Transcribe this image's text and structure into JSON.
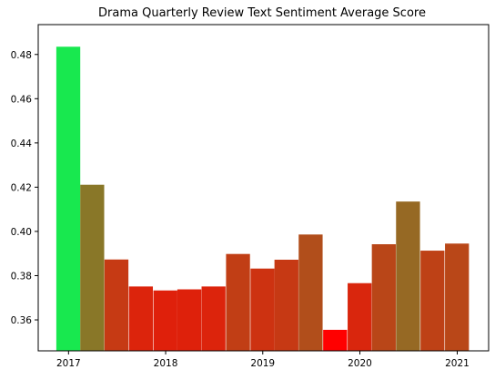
{
  "chart_data": {
    "type": "bar",
    "title": "Drama Quarterly Review Text Sentiment Average Score",
    "xlabel": "",
    "ylabel": "",
    "ylim": [
      0.346,
      0.4935
    ],
    "xlim": [
      "2016-09-09",
      "2021-04-29"
    ],
    "x_ticks": [
      "2017",
      "2018",
      "2019",
      "2020",
      "2021"
    ],
    "y_ticks": [
      "0.36",
      "0.38",
      "0.40",
      "0.42",
      "0.44",
      "0.46",
      "0.48"
    ],
    "grid": false,
    "color_scale": {
      "low": "#ff0000",
      "high": "#18e84f"
    },
    "series": [
      {
        "x": [
          "2016-12-31",
          "2017-03-31",
          "2017-06-30",
          "2017-09-30",
          "2017-12-31",
          "2018-03-31",
          "2018-06-30",
          "2018-09-30",
          "2018-12-31",
          "2019-03-31",
          "2019-06-30",
          "2019-09-30",
          "2019-12-31",
          "2020-03-31",
          "2020-06-30",
          "2020-09-30",
          "2020-12-31"
        ],
        "values": [
          0.4835,
          0.4211,
          0.3873,
          0.3751,
          0.3733,
          0.3738,
          0.3751,
          0.3898,
          0.3832,
          0.3872,
          0.3986,
          0.3555,
          0.3766,
          0.3942,
          0.4135,
          0.3913,
          0.3945
        ]
      }
    ]
  }
}
